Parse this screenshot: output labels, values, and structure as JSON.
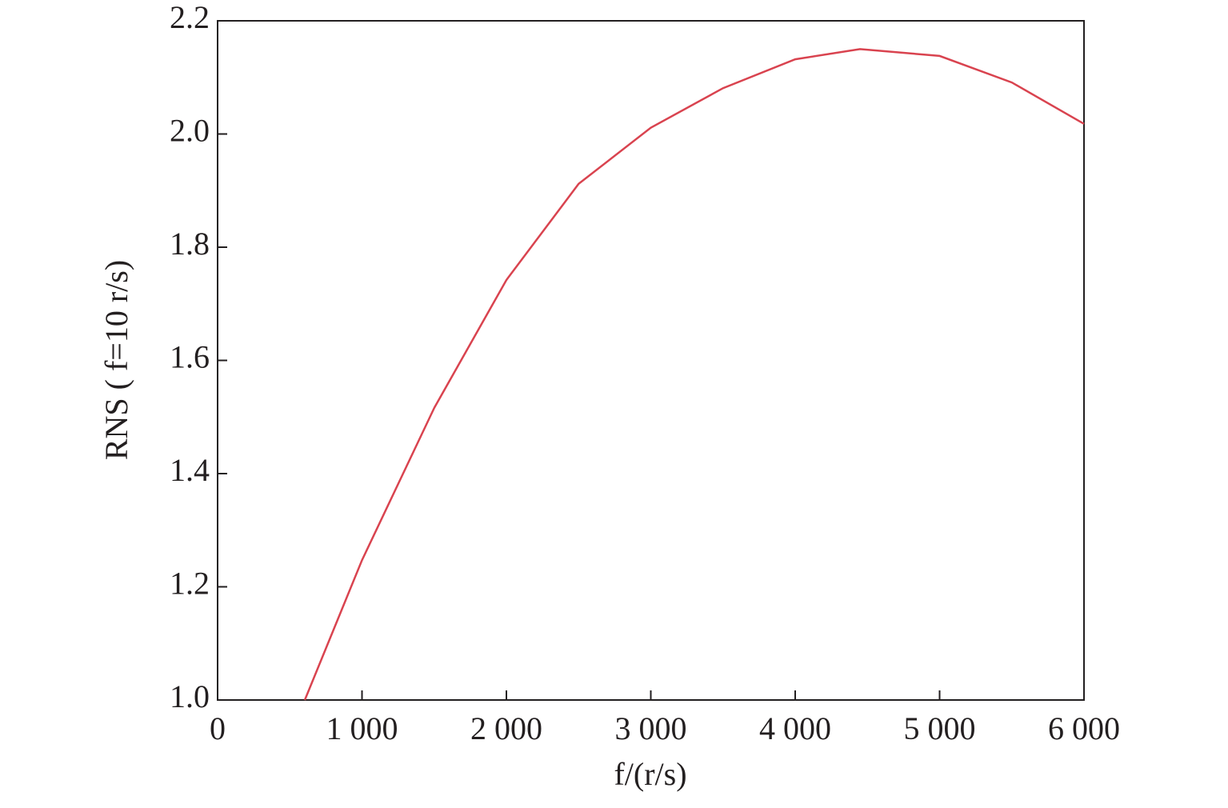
{
  "chart_data": {
    "type": "line",
    "xlabel": "f/(r/s)",
    "ylabel": "RNS ( f=10 r/s)",
    "x": [
      604,
      1000,
      1500,
      2000,
      2500,
      3000,
      3500,
      4000,
      4449,
      5000,
      5500,
      6000
    ],
    "series": [
      {
        "name": "RNS",
        "color": "#d9434f",
        "values": [
          1.0,
          1.247,
          1.516,
          1.742,
          1.912,
          2.011,
          2.081,
          2.132,
          2.15,
          2.138,
          2.091,
          2.018
        ]
      }
    ],
    "xlim": [
      0,
      6000
    ],
    "xticks": [
      0,
      {
        "value": 1000,
        "label": "1 000"
      },
      {
        "value": 2000,
        "label": "2 000"
      },
      {
        "value": 3000,
        "label": "3 000"
      },
      {
        "value": 4000,
        "label": "4 000"
      },
      {
        "value": 5000,
        "label": "5 000"
      },
      {
        "value": 6000,
        "label": "6 000"
      }
    ],
    "ylim": [
      1.0,
      2.2
    ],
    "yticks": [
      {
        "value": 1.0,
        "label": "1.0"
      },
      1.2,
      1.4,
      1.6,
      1.8,
      {
        "value": 2.0,
        "label": "2.0"
      },
      2.2
    ],
    "grid": false
  }
}
